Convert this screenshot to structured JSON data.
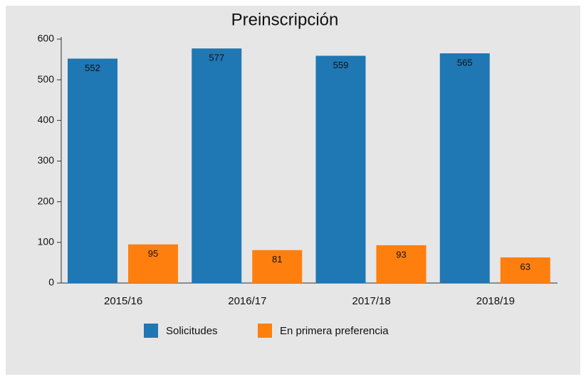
{
  "chart_data": {
    "type": "bar",
    "title": "Preinscripción",
    "categories": [
      "2015/16",
      "2016/17",
      "2017/18",
      "2018/19"
    ],
    "series": [
      {
        "name": "Solicitudes",
        "color": "#1f77b4",
        "values": [
          552,
          577,
          559,
          565
        ]
      },
      {
        "name": "En primera preferencia",
        "color": "#ff7f0e",
        "values": [
          95,
          81,
          93,
          63
        ]
      }
    ],
    "ylim": [
      0,
      600
    ],
    "yticks": [
      0,
      100,
      200,
      300,
      400,
      500,
      600
    ]
  }
}
